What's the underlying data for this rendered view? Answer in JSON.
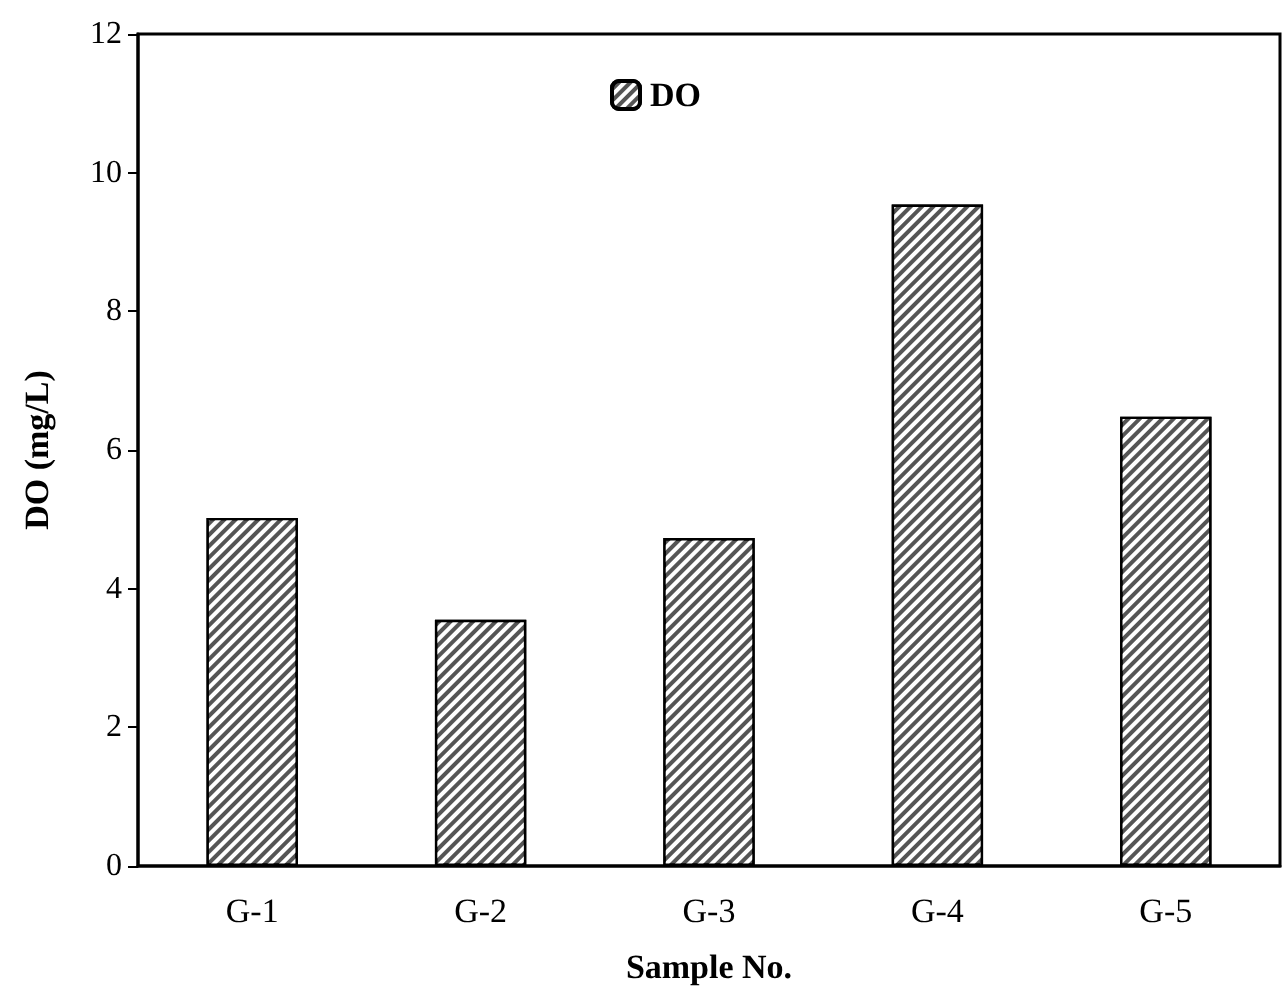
{
  "chart_data": {
    "type": "bar",
    "xlabel": "Sample No.",
    "ylabel": "DO (mg/L)",
    "categories": [
      "G-1",
      "G-2",
      "G-3",
      "G-4",
      "G-5"
    ],
    "series": [
      {
        "name": "DO",
        "color": "#555555",
        "values": [
          5.02,
          3.55,
          4.73,
          9.54,
          6.48
        ]
      }
    ],
    "ylim": [
      0,
      12
    ],
    "yticks": [
      0,
      2,
      4,
      6,
      8,
      10,
      12
    ],
    "grid": false,
    "legend": "top"
  }
}
